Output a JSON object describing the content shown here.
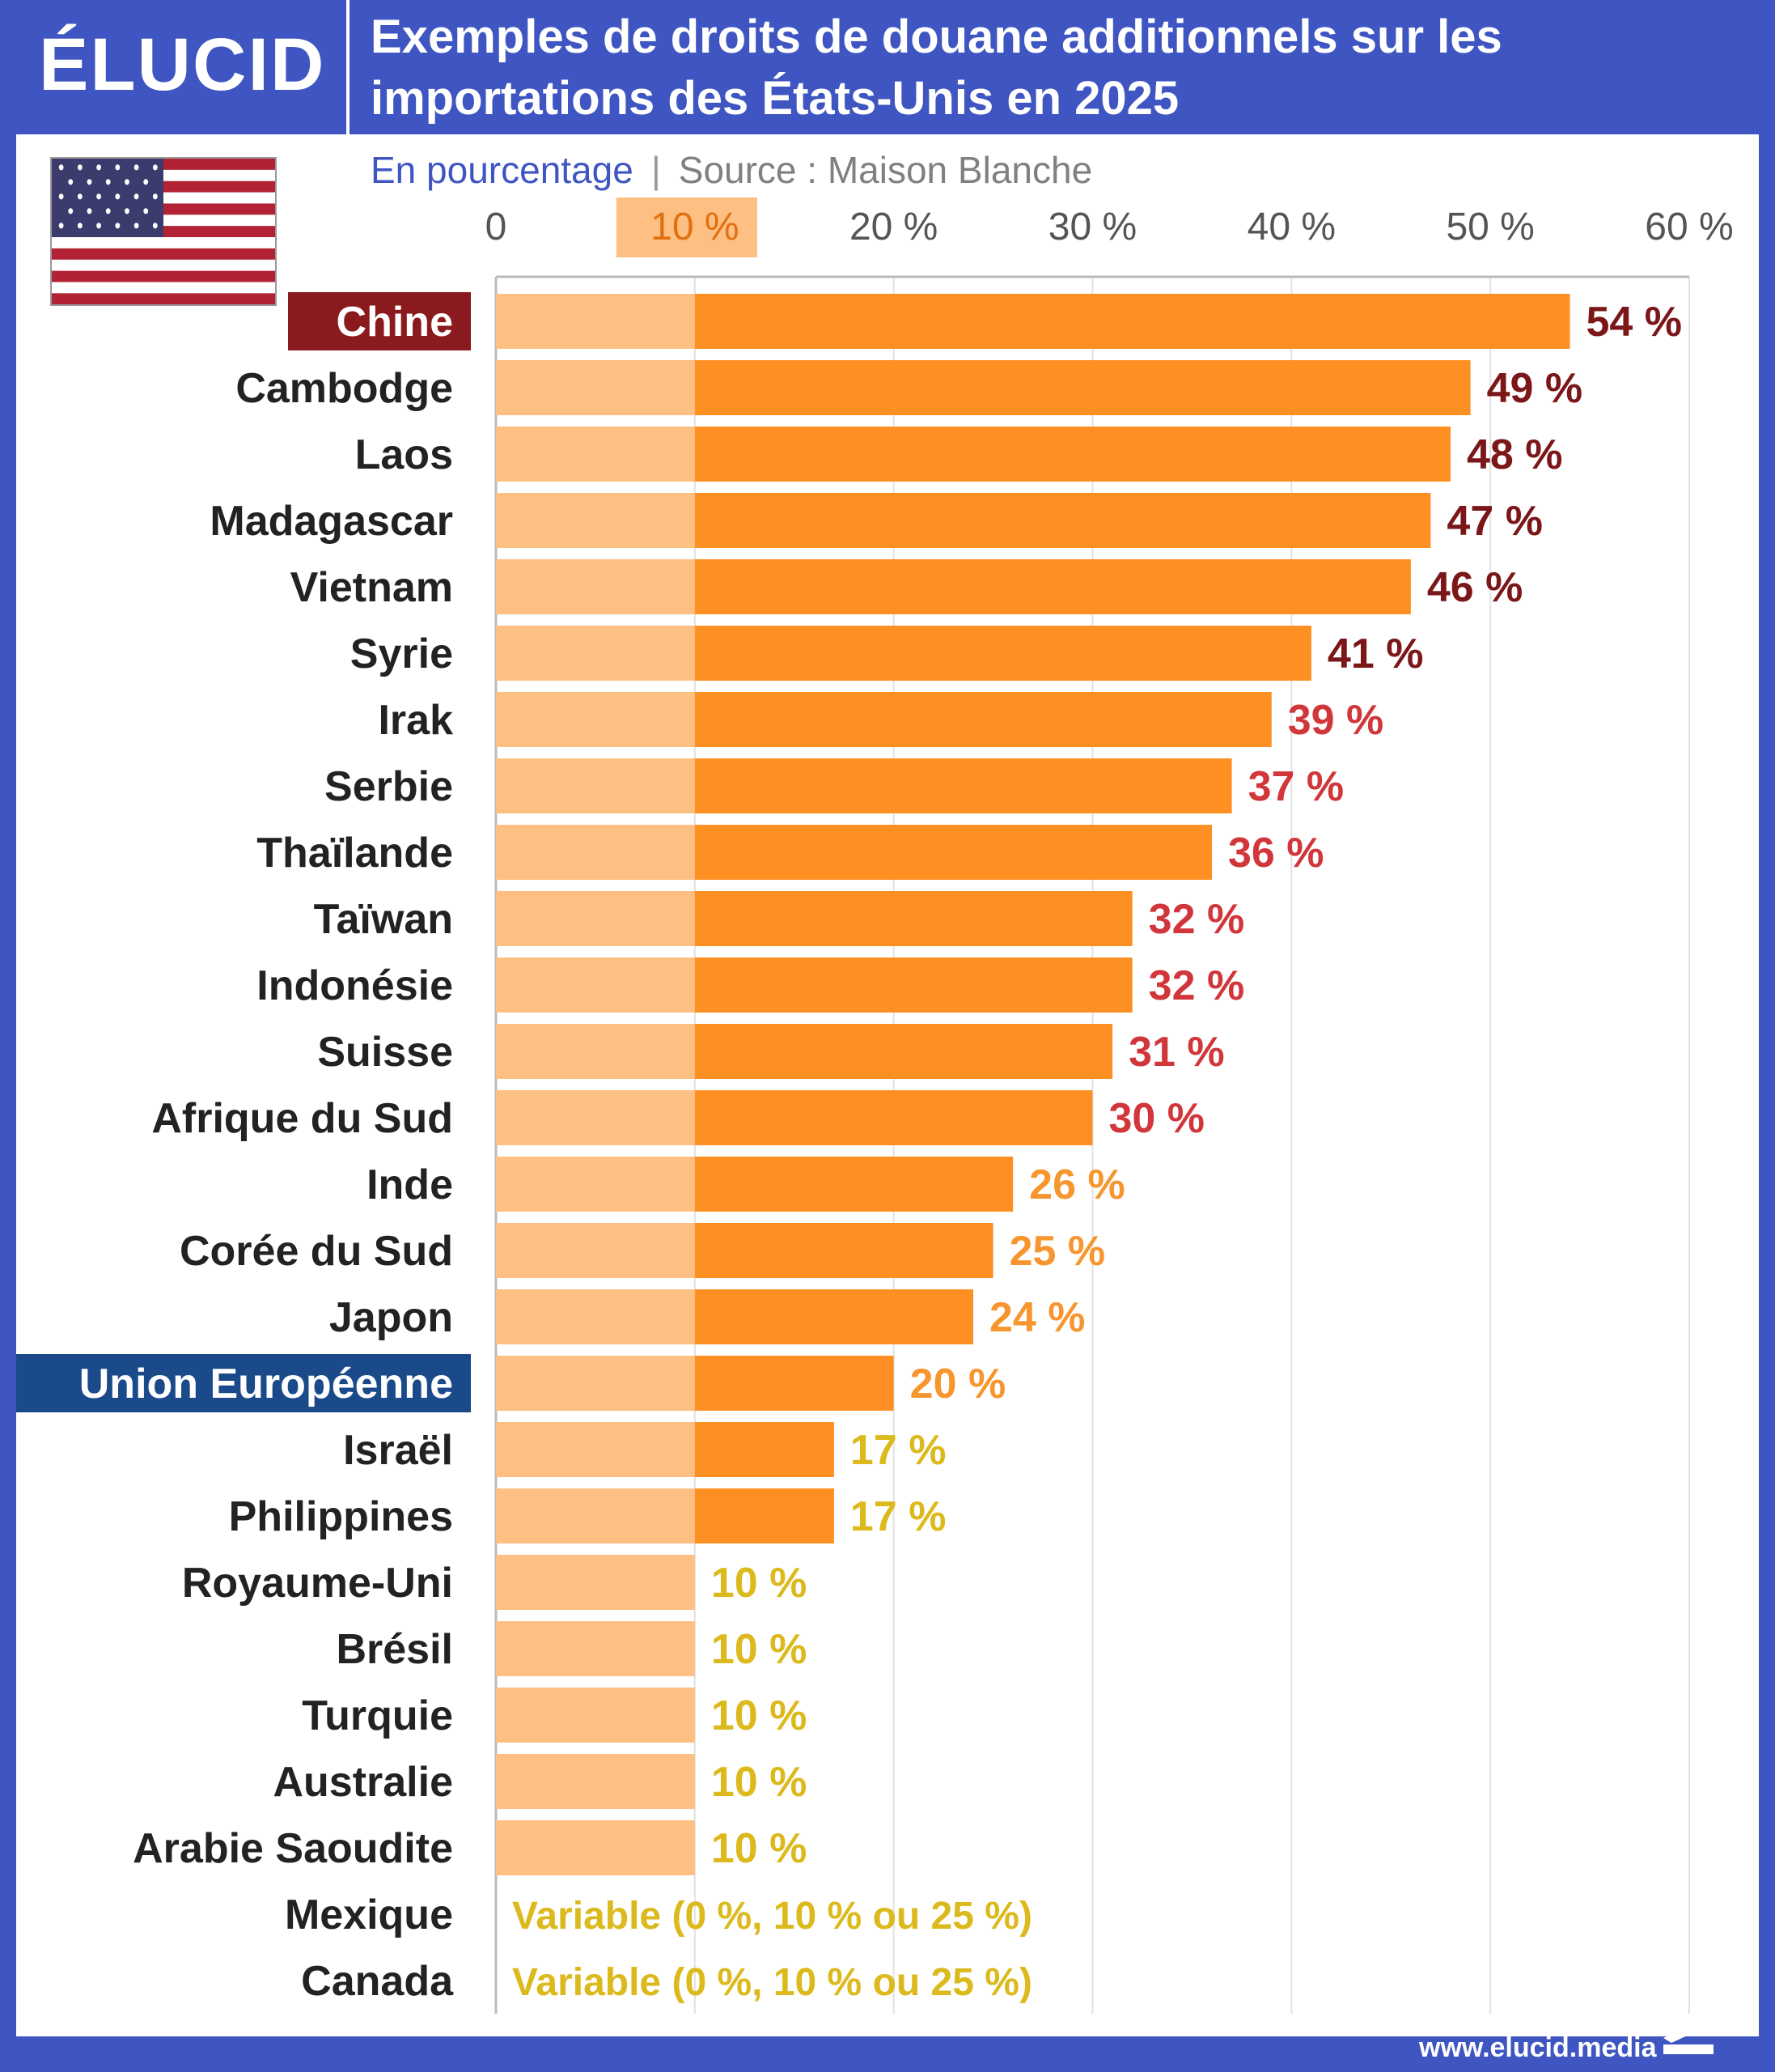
{
  "brand": {
    "logo": "ÉLUCID",
    "url": "www.elucid.media"
  },
  "title": "Exemples de droits de douane additionnels sur les importations des États-Unis en 2025",
  "subtitle": {
    "unit": "En pourcentage",
    "separator": "|",
    "source": "Source : Maison Blanche"
  },
  "colors": {
    "header_bg": "#3f56c2",
    "bar_base": "#fdbf82",
    "bar_extra": "#fe8f23",
    "label_dark": "#7b1619",
    "label_red": "#d1363b",
    "label_orange": "#f7962e",
    "label_yellow": "#dcb91c",
    "china_tag": "#8b1a1e",
    "eu_tag": "#1a4a8a"
  },
  "chart_data": {
    "type": "bar",
    "orientation": "horizontal",
    "xlim": [
      0,
      60
    ],
    "xticks": [
      {
        "value": 0,
        "label": "0"
      },
      {
        "value": 10,
        "label": "10 %",
        "highlight": true
      },
      {
        "value": 20,
        "label": "20 %"
      },
      {
        "value": 30,
        "label": "30 %"
      },
      {
        "value": 40,
        "label": "40 %"
      },
      {
        "value": 50,
        "label": "50 %"
      },
      {
        "value": 60,
        "label": "60 %"
      }
    ],
    "base_rate": 10,
    "grid": true,
    "categories": [
      "Chine",
      "Cambodge",
      "Laos",
      "Madagascar",
      "Vietnam",
      "Syrie",
      "Irak",
      "Serbie",
      "Thaïlande",
      "Taïwan",
      "Indonésie",
      "Suisse",
      "Afrique du Sud",
      "Inde",
      "Corée du Sud",
      "Japon",
      "Union Européenne",
      "Israël",
      "Philippines",
      "Royaume-Uni",
      "Brésil",
      "Turquie",
      "Australie",
      "Arabie Saoudite",
      "Mexique",
      "Canada"
    ],
    "values": [
      54,
      49,
      48,
      47,
      46,
      41,
      39,
      37,
      36,
      32,
      32,
      31,
      30,
      26,
      25,
      24,
      20,
      17,
      17,
      10,
      10,
      10,
      10,
      10,
      null,
      null
    ],
    "value_labels": [
      "54 %",
      "49 %",
      "48 %",
      "47 %",
      "46 %",
      "41 %",
      "39 %",
      "37 %",
      "36 %",
      "32 %",
      "32 %",
      "31 %",
      "30 %",
      "26 %",
      "25 %",
      "24 %",
      "20 %",
      "17 %",
      "17 %",
      "10 %",
      "10 %",
      "10 %",
      "10 %",
      "10 %",
      "Variable (0 %, 10 % ou 25 %)",
      "Variable (0 %, 10 % ou 25 %)"
    ],
    "label_tiers": [
      "dark",
      "dark",
      "dark",
      "dark",
      "dark",
      "dark",
      "red",
      "red",
      "red",
      "red",
      "red",
      "red",
      "red",
      "orange",
      "orange",
      "orange",
      "orange",
      "yellow",
      "yellow",
      "yellow",
      "yellow",
      "yellow",
      "yellow",
      "yellow",
      "yellow",
      "yellow"
    ],
    "highlighted_categories": {
      "Chine": "china_tag",
      "Union Européenne": "eu_tag"
    }
  }
}
